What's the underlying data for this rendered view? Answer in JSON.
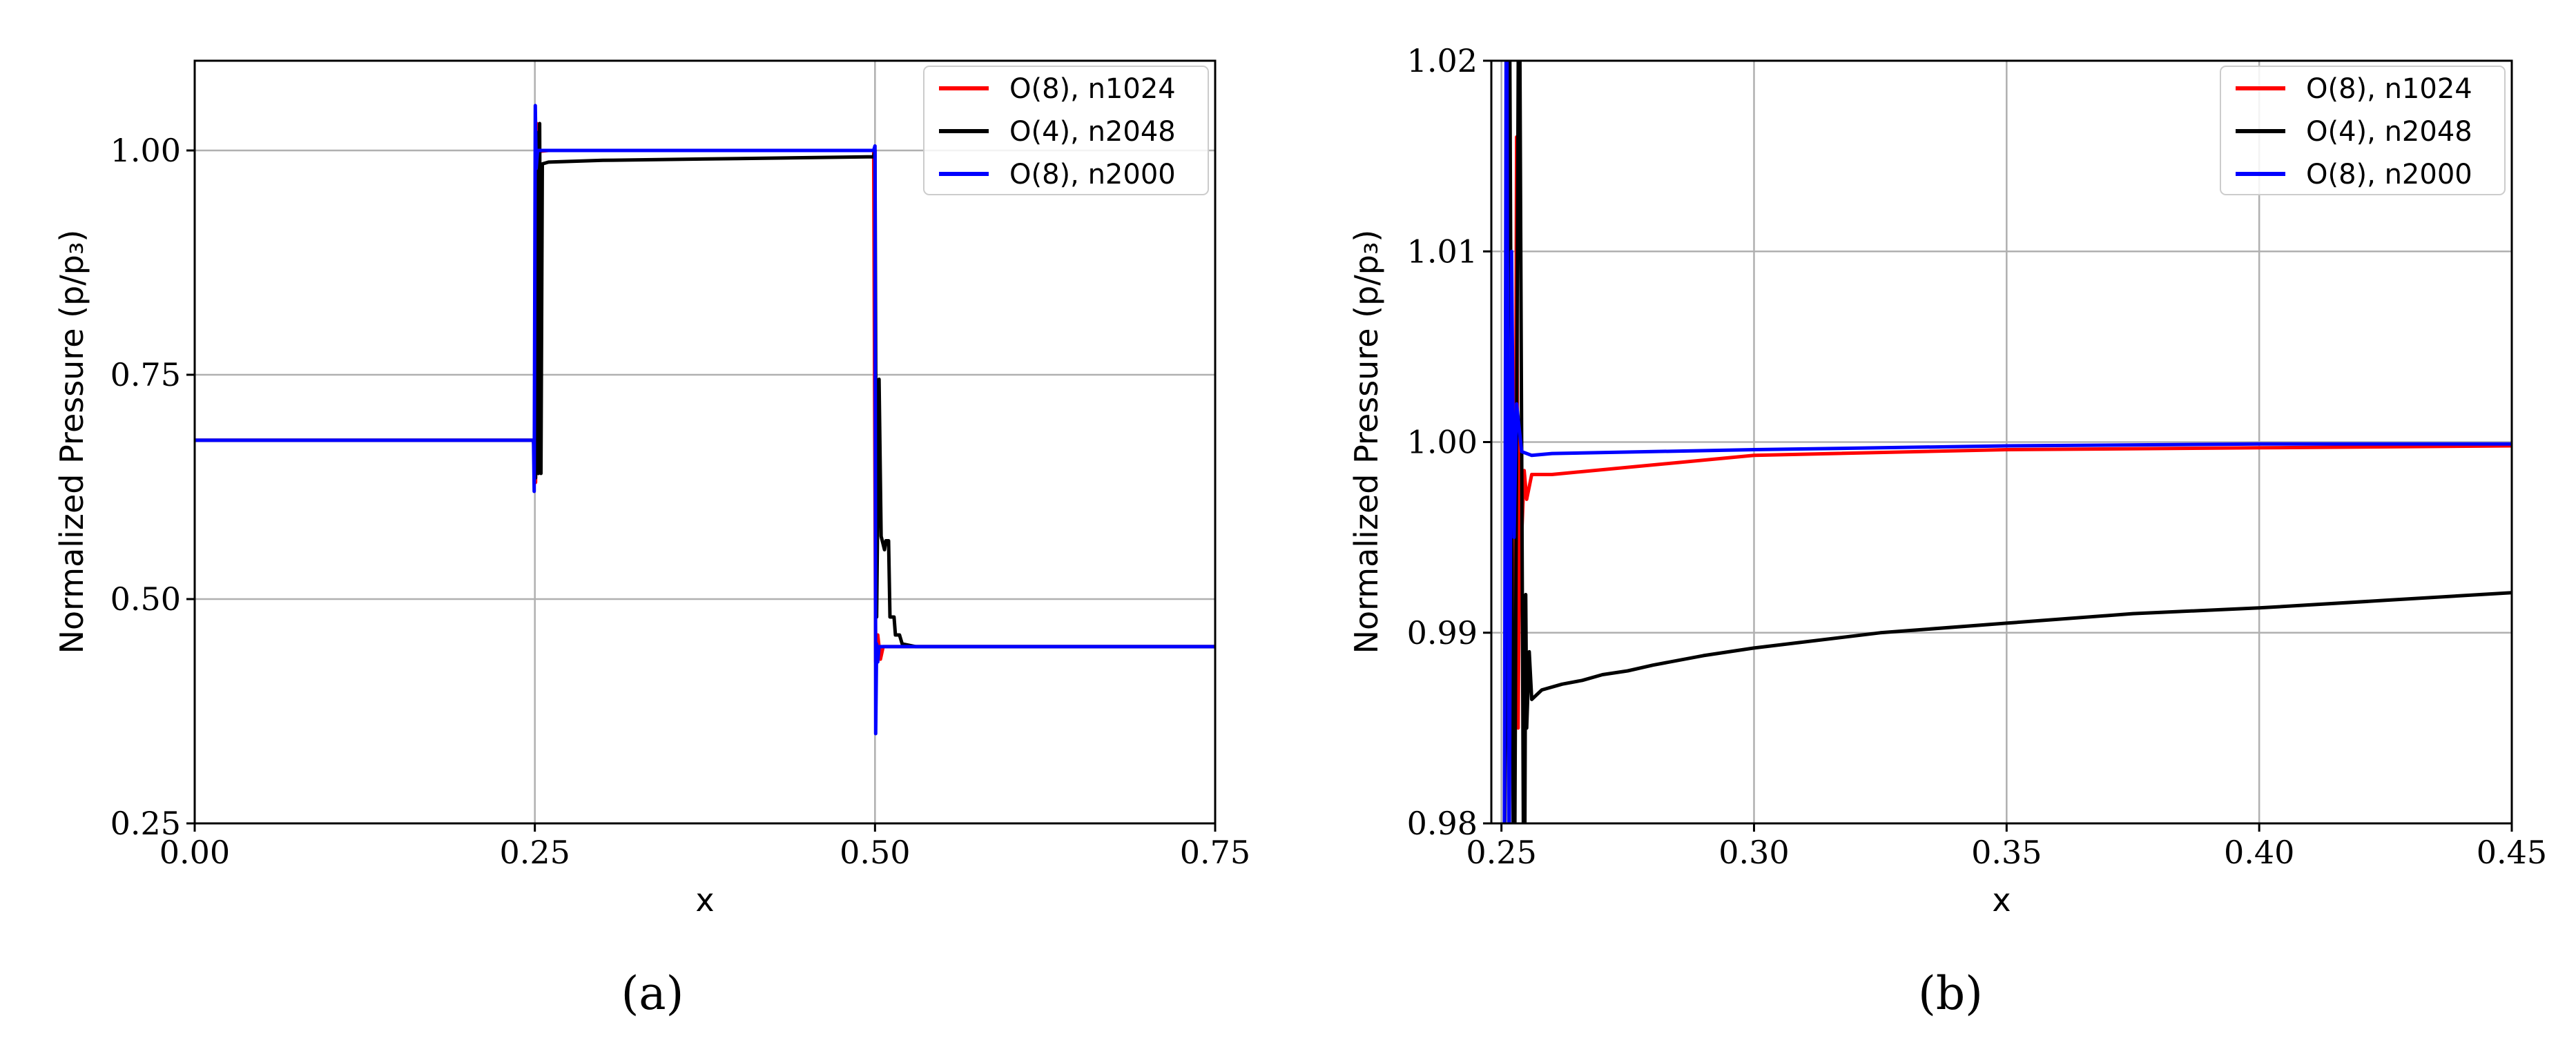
{
  "chart_data": [
    {
      "id": "a",
      "type": "line",
      "xlabel": "x",
      "ylabel": "Normalized Pressure (p/p₃)",
      "xlim": [
        0,
        0.75
      ],
      "ylim": [
        0.25,
        1.1
      ],
      "xticks": [
        0.0,
        0.25,
        0.5,
        0.75
      ],
      "xtick_labels": [
        "0.00",
        "0.25",
        "0.50",
        "0.75"
      ],
      "yticks": [
        0.25,
        0.5,
        0.75,
        1.0
      ],
      "ytick_labels": [
        "0.25",
        "0.50",
        "0.75",
        "1.00"
      ],
      "grid": true,
      "legend_position": "top-right",
      "caption": "(a)",
      "series": [
        {
          "name": "O(8), n1024",
          "color": "#ff0000",
          "points": [
            [
              0.0,
              0.677
            ],
            [
              0.249,
              0.677
            ],
            [
              0.2505,
              0.63
            ],
            [
              0.2515,
              1.03
            ],
            [
              0.2525,
              0.64
            ],
            [
              0.2535,
              0.999
            ],
            [
              0.26,
              1.0
            ],
            [
              0.499,
              1.0
            ],
            [
              0.5005,
              0.43
            ],
            [
              0.502,
              0.46
            ],
            [
              0.504,
              0.433
            ],
            [
              0.506,
              0.447
            ],
            [
              0.75,
              0.447
            ]
          ]
        },
        {
          "name": "O(4), n2048",
          "color": "#000000",
          "points": [
            [
              0.0,
              0.677
            ],
            [
              0.249,
              0.677
            ],
            [
              0.2505,
              0.635
            ],
            [
              0.2515,
              1.02
            ],
            [
              0.2525,
              0.64
            ],
            [
              0.2535,
              1.03
            ],
            [
              0.2545,
              0.64
            ],
            [
              0.2555,
              0.985
            ],
            [
              0.26,
              0.987
            ],
            [
              0.3,
              0.989
            ],
            [
              0.4,
              0.991
            ],
            [
              0.499,
              0.993
            ],
            [
              0.5,
              1.0
            ],
            [
              0.5012,
              0.48
            ],
            [
              0.503,
              0.745
            ],
            [
              0.5045,
              0.57
            ],
            [
              0.507,
              0.555
            ],
            [
              0.508,
              0.565
            ],
            [
              0.51,
              0.565
            ],
            [
              0.511,
              0.48
            ],
            [
              0.512,
              0.48
            ],
            [
              0.514,
              0.48
            ],
            [
              0.515,
              0.46
            ],
            [
              0.518,
              0.46
            ],
            [
              0.52,
              0.45
            ],
            [
              0.53,
              0.447
            ],
            [
              0.75,
              0.447
            ]
          ]
        },
        {
          "name": "O(8), n2000",
          "color": "#0000ff",
          "points": [
            [
              0.0,
              0.677
            ],
            [
              0.249,
              0.677
            ],
            [
              0.2495,
              0.62
            ],
            [
              0.2503,
              1.05
            ],
            [
              0.251,
              0.98
            ],
            [
              0.252,
              1.0
            ],
            [
              0.499,
              1.0
            ],
            [
              0.5,
              1.005
            ],
            [
              0.5005,
              0.35
            ],
            [
              0.5012,
              0.45
            ],
            [
              0.502,
              0.43
            ],
            [
              0.503,
              0.447
            ],
            [
              0.75,
              0.447
            ]
          ]
        }
      ]
    },
    {
      "id": "b",
      "type": "line",
      "xlabel": "x",
      "ylabel": "Normalized Pressure (p/p₃)",
      "xlim": [
        0.248,
        0.45
      ],
      "ylim": [
        0.98,
        1.02
      ],
      "xticks": [
        0.25,
        0.3,
        0.35,
        0.4,
        0.45
      ],
      "xtick_labels": [
        "0.25",
        "0.30",
        "0.35",
        "0.40",
        "0.45"
      ],
      "yticks": [
        0.98,
        0.99,
        1.0,
        1.01,
        1.02
      ],
      "ytick_labels": [
        "0.98",
        "0.99",
        "1.00",
        "1.01",
        "1.02"
      ],
      "grid": true,
      "legend_position": "top-right",
      "caption": "(b)",
      "series": [
        {
          "name": "O(8), n1024",
          "color": "#ff0000",
          "points": [
            [
              0.2525,
              0.97
            ],
            [
              0.253,
              1.016
            ],
            [
              0.2533,
              0.985
            ],
            [
              0.2537,
              1.0
            ],
            [
              0.254,
              0.995
            ],
            [
              0.2545,
              0.9985
            ],
            [
              0.255,
              0.997
            ],
            [
              0.256,
              0.9983
            ],
            [
              0.26,
              0.9983
            ],
            [
              0.3,
              0.9993
            ],
            [
              0.35,
              0.9996
            ],
            [
              0.4,
              0.9997
            ],
            [
              0.45,
              0.9998
            ]
          ]
        },
        {
          "name": "O(4), n2048",
          "color": "#000000",
          "points": [
            [
              0.2505,
              0.97
            ],
            [
              0.2515,
              1.03
            ],
            [
              0.2525,
              0.97
            ],
            [
              0.2535,
              1.03
            ],
            [
              0.2545,
              0.97
            ],
            [
              0.2548,
              0.992
            ],
            [
              0.255,
              0.985
            ],
            [
              0.2555,
              0.989
            ],
            [
              0.256,
              0.9865
            ],
            [
              0.258,
              0.987
            ],
            [
              0.262,
              0.9873
            ],
            [
              0.266,
              0.9875
            ],
            [
              0.27,
              0.9878
            ],
            [
              0.275,
              0.988
            ],
            [
              0.28,
              0.9883
            ],
            [
              0.29,
              0.9888
            ],
            [
              0.3,
              0.9892
            ],
            [
              0.325,
              0.99
            ],
            [
              0.35,
              0.9905
            ],
            [
              0.375,
              0.991
            ],
            [
              0.4,
              0.9913
            ],
            [
              0.425,
              0.9917
            ],
            [
              0.45,
              0.9921
            ]
          ]
        },
        {
          "name": "O(8), n2000",
          "color": "#0000ff",
          "points": [
            [
              0.2505,
              0.97
            ],
            [
              0.251,
              1.03
            ],
            [
              0.2515,
              0.975
            ],
            [
              0.252,
              1.01
            ],
            [
              0.2525,
              0.995
            ],
            [
              0.253,
              1.002
            ],
            [
              0.254,
              0.9995
            ],
            [
              0.256,
              0.9993
            ],
            [
              0.26,
              0.9994
            ],
            [
              0.3,
              0.9996
            ],
            [
              0.35,
              0.9998
            ],
            [
              0.4,
              0.9999
            ],
            [
              0.45,
              0.9999
            ]
          ]
        }
      ]
    }
  ]
}
